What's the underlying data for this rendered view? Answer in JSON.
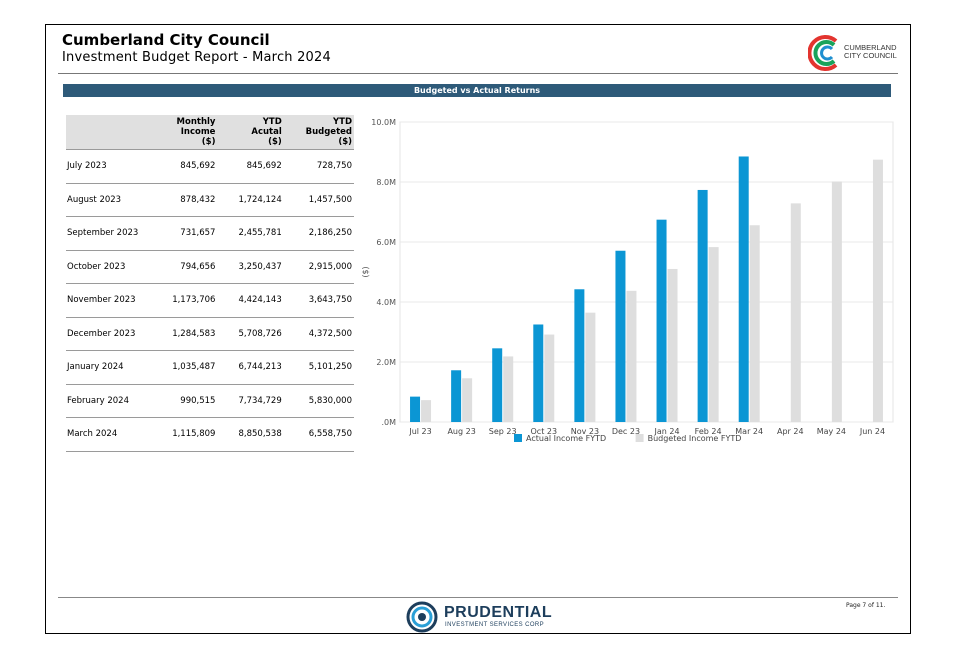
{
  "header": {
    "title": "Cumberland City Council",
    "subtitle": "Investment Budget Report - March 2024",
    "logo_text_line1": "CUMBERLAND",
    "logo_text_line2": "CITY COUNCIL"
  },
  "banner": {
    "title": "Budgeted vs Actual Returns"
  },
  "table": {
    "headers": [
      [
        ""
      ],
      [
        "Monthly",
        "Income",
        "($)"
      ],
      [
        "YTD",
        "Acutal",
        "($)"
      ],
      [
        "YTD",
        "Budgeted",
        "($)"
      ]
    ],
    "rows": [
      [
        "July 2023",
        "845,692",
        "845,692",
        "728,750"
      ],
      [
        "August 2023",
        "878,432",
        "1,724,124",
        "1,457,500"
      ],
      [
        "September 2023",
        "731,657",
        "2,455,781",
        "2,186,250"
      ],
      [
        "October 2023",
        "794,656",
        "3,250,437",
        "2,915,000"
      ],
      [
        "November 2023",
        "1,173,706",
        "4,424,143",
        "3,643,750"
      ],
      [
        "December 2023",
        "1,284,583",
        "5,708,726",
        "4,372,500"
      ],
      [
        "January 2024",
        "1,035,487",
        "6,744,213",
        "5,101,250"
      ],
      [
        "February 2024",
        "990,515",
        "7,734,729",
        "5,830,000"
      ],
      [
        "March 2024",
        "1,115,809",
        "8,850,538",
        "6,558,750"
      ]
    ]
  },
  "chart_data": {
    "type": "bar",
    "title": "",
    "xlabel": "",
    "ylabel": "($)",
    "ylim": [
      0,
      10000000
    ],
    "yticks": [
      0,
      2000000,
      4000000,
      6000000,
      8000000,
      10000000
    ],
    "ytick_labels": [
      ".0M",
      "2.0M",
      "4.0M",
      "6.0M",
      "8.0M",
      "10.0M"
    ],
    "categories": [
      "Jul 23",
      "Aug 23",
      "Sep 23",
      "Oct 23",
      "Nov 23",
      "Dec 23",
      "Jan 24",
      "Feb 24",
      "Mar 24",
      "Apr 24",
      "May 24",
      "Jun 24"
    ],
    "series": [
      {
        "name": "Actual Income FYTD",
        "color": "#0b96d4",
        "values": [
          845692,
          1724124,
          2455781,
          3250437,
          4424143,
          5708726,
          6744213,
          7734729,
          8850538,
          null,
          null,
          null
        ]
      },
      {
        "name": "Budgeted Income FYTD",
        "color": "#dedede",
        "values": [
          728750,
          1457500,
          2186250,
          2915000,
          3643750,
          4372500,
          5101250,
          5830000,
          6558750,
          7287500,
          8016250,
          8745000
        ]
      }
    ],
    "grid": true,
    "legend": "bottom"
  },
  "footer": {
    "brand": "PRUDENTIAL",
    "tagline": "INVESTMENT SERVICES CORP",
    "page": "Page 7 of 11."
  }
}
